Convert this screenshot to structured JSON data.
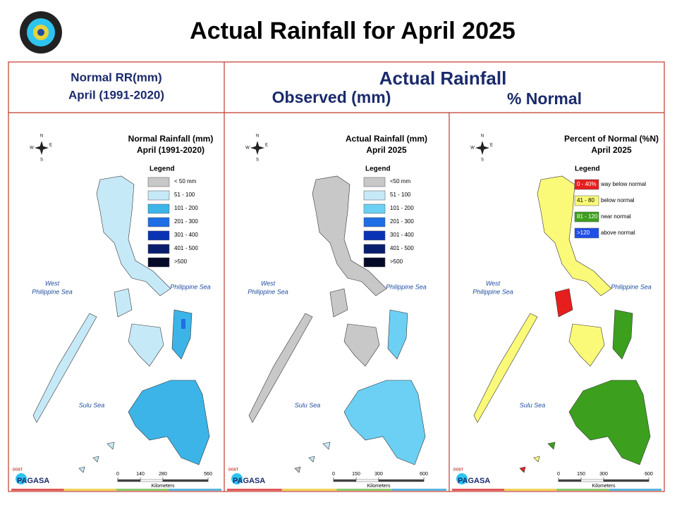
{
  "header": {
    "title": "Actual Rainfall for April 2025"
  },
  "columns": {
    "normal_heading": [
      "Normal RR(mm)",
      "April (1991-2020)"
    ],
    "actual_heading": "Actual Rainfall",
    "observed_heading": "Observed (mm)",
    "percent_heading": "% Normal"
  },
  "compass": {
    "n": "N",
    "e": "E",
    "s": "S",
    "w": "W"
  },
  "logo": {
    "name": "PAGASA",
    "agency": "DOST"
  },
  "maps": [
    {
      "title": [
        "Normal Rainfall (mm)",
        "April (1991-2020)"
      ],
      "legend_title": "Legend",
      "legend": [
        {
          "label": "< 50 mm",
          "color": "#c8c8c8"
        },
        {
          "label": "51 - 100",
          "color": "#c6e9f8"
        },
        {
          "label": "101 - 200",
          "color": "#3cb4e8"
        },
        {
          "label": "201 - 300",
          "color": "#1e6ee6"
        },
        {
          "label": "301 - 400",
          "color": "#0a32b4"
        },
        {
          "label": "401 - 500",
          "color": "#0a1e6e"
        },
        {
          "label": ">500",
          "color": "#050a28"
        }
      ],
      "seas": {
        "west": [
          "West",
          "Philippine Sea"
        ],
        "east": "Philippine Sea",
        "south": "Sulu Sea"
      },
      "scale": {
        "ticks": [
          0,
          140,
          280,
          560
        ],
        "unit": "Kilometers"
      }
    },
    {
      "title": [
        "Actual Rainfall (mm)",
        "April 2025"
      ],
      "legend_title": "Legend",
      "legend": [
        {
          "label": "<50 mm",
          "color": "#c8c8c8"
        },
        {
          "label": "51 - 100",
          "color": "#c6e9f8"
        },
        {
          "label": "101 - 200",
          "color": "#6cd0f4"
        },
        {
          "label": "201 - 300",
          "color": "#1e6ee6"
        },
        {
          "label": "301 - 400",
          "color": "#0a32b4"
        },
        {
          "label": "401 - 500",
          "color": "#0a1e6e"
        },
        {
          "label": ">500",
          "color": "#050a28"
        }
      ],
      "seas": {
        "west": [
          "West",
          "Philippine Sea"
        ],
        "east": "Philippine Sea",
        "south": "Sulu Sea"
      },
      "scale": {
        "ticks": [
          0,
          150,
          300,
          600
        ],
        "unit": "Kilometers"
      }
    },
    {
      "title": [
        "Percent of Normal (%N)",
        "April 2025"
      ],
      "legend_title": "Legend",
      "legend": [
        {
          "range": "0 - 40%",
          "label": "way below normal",
          "color": "#e61e1e"
        },
        {
          "range": "41 - 80",
          "label": "below normal",
          "color": "#fafa78"
        },
        {
          "range": "81 - 120",
          "label": "near normal",
          "color": "#3ca01e"
        },
        {
          "range": ">120",
          "label": "above normal",
          "color": "#1e50e6"
        }
      ],
      "seas": {
        "west": [
          "West",
          "Philippine Sea"
        ],
        "east": "Philippine Sea",
        "south": "Sulu Sea"
      },
      "scale": {
        "ticks": [
          0,
          150,
          300,
          600
        ],
        "unit": "Kilometers"
      }
    }
  ]
}
